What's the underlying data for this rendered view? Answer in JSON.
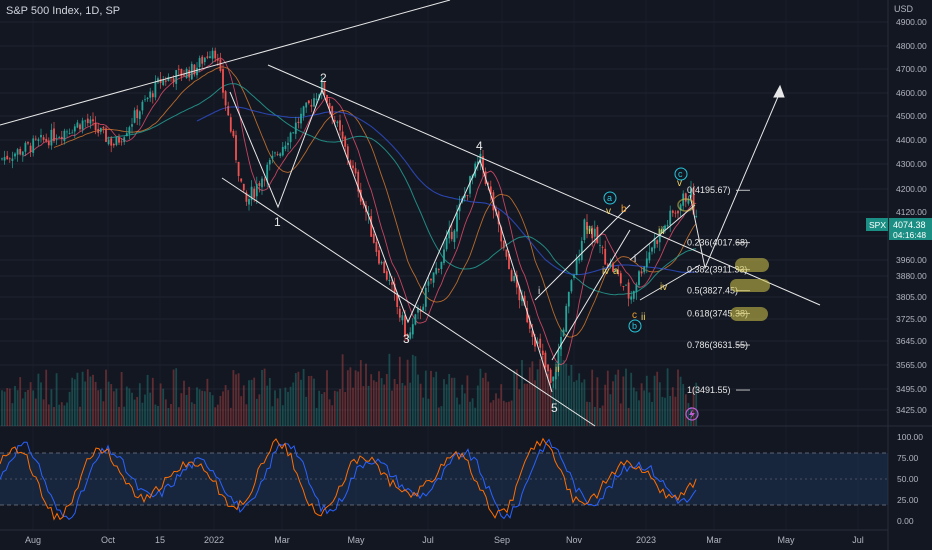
{
  "header": {
    "title": "S&P 500 Index, 1D, SP"
  },
  "price_axis": {
    "currency": "USD",
    "ticks": [
      "4900.00",
      "4800.00",
      "4700.00",
      "4600.00",
      "4500.00",
      "4400.00",
      "4300.00",
      "4200.00",
      "4120.00",
      "4040.00",
      "3960.00",
      "3880.00",
      "3805.00",
      "3725.00",
      "3645.00",
      "3565.00",
      "3495.00",
      "3425.00"
    ],
    "badge_symbol": "SPX",
    "badge_price": "4074.38",
    "badge_timer": "04:16:48"
  },
  "osc_axis": {
    "ticks": [
      "100.00",
      "75.00",
      "50.00",
      "25.00",
      "0.00"
    ]
  },
  "time_axis": {
    "ticks": [
      "Aug",
      "Oct",
      "15",
      "2022",
      "Mar",
      "May",
      "Jul",
      "Sep",
      "Nov",
      "2023",
      "Mar",
      "May",
      "Jul"
    ]
  },
  "wave_labels": {
    "major": [
      "1",
      "2",
      "3",
      "4",
      "5"
    ],
    "minor": [
      "i",
      "ii",
      "iii",
      "iv",
      "v",
      "a",
      "b",
      "c",
      "i",
      "ii",
      "iii",
      "iv",
      "v",
      "c"
    ],
    "circled": [
      "a",
      "b",
      "c"
    ]
  },
  "fib_levels": [
    {
      "label": "0(4195.67)",
      "price": 4195.67
    },
    {
      "label": "0.236(4017.68)",
      "price": 4017.68
    },
    {
      "label": "0.382(3911.33)",
      "price": 3911.33
    },
    {
      "label": "0.5(3827.45)",
      "price": 3827.45
    },
    {
      "label": "0.618(3745.38)",
      "price": 3745.38
    },
    {
      "label": "0.786(3631.55)",
      "price": 3631.55
    },
    {
      "label": "1(3491.55)",
      "price": 3491.55
    }
  ],
  "colors": {
    "background": "#131722",
    "up": "#26a69a",
    "down": "#ef5350",
    "highlight": "#d4c84a",
    "stoch_k": "#2962ff",
    "stoch_d": "#ff6d00"
  },
  "chart_data": {
    "type": "candlestick",
    "title": "S&P 500 Index, 1D, SP",
    "ylim": [
      3425,
      4900
    ],
    "trajectory_dates": [
      "2021-07",
      "2021-08",
      "2021-09",
      "2021-10",
      "2021-11",
      "2021-12",
      "2022-01-04",
      "2022-02-24",
      "2022-03-29",
      "2022-05-20",
      "2022-06-16",
      "2022-08-16",
      "2022-09",
      "2022-10-13",
      "2022-11",
      "2022-12",
      "2023-01",
      "2023-02-02",
      "2023-02-15"
    ],
    "trajectory_values": [
      4320,
      4400,
      4480,
      4380,
      4650,
      4700,
      4800,
      4140,
      4630,
      3900,
      3650,
      4320,
      3900,
      3491,
      4100,
      3800,
      4000,
      4195,
      4074
    ],
    "last_price": 4074.38
  }
}
